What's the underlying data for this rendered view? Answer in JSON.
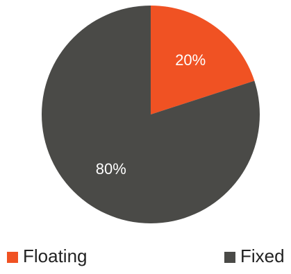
{
  "chart_data": {
    "type": "pie",
    "categories": [
      "Floating",
      "Fixed"
    ],
    "values": [
      20,
      80
    ],
    "data_labels": [
      "20%",
      "80%"
    ],
    "colors": [
      "#F05223",
      "#4A4A47"
    ],
    "label_colors": [
      "#ffffff",
      "#ffffff"
    ],
    "title": "",
    "start_angle_deg": 0,
    "direction": "clockwise",
    "legend": {
      "position": "bottom",
      "entries": [
        "Floating",
        "Fixed"
      ]
    }
  }
}
